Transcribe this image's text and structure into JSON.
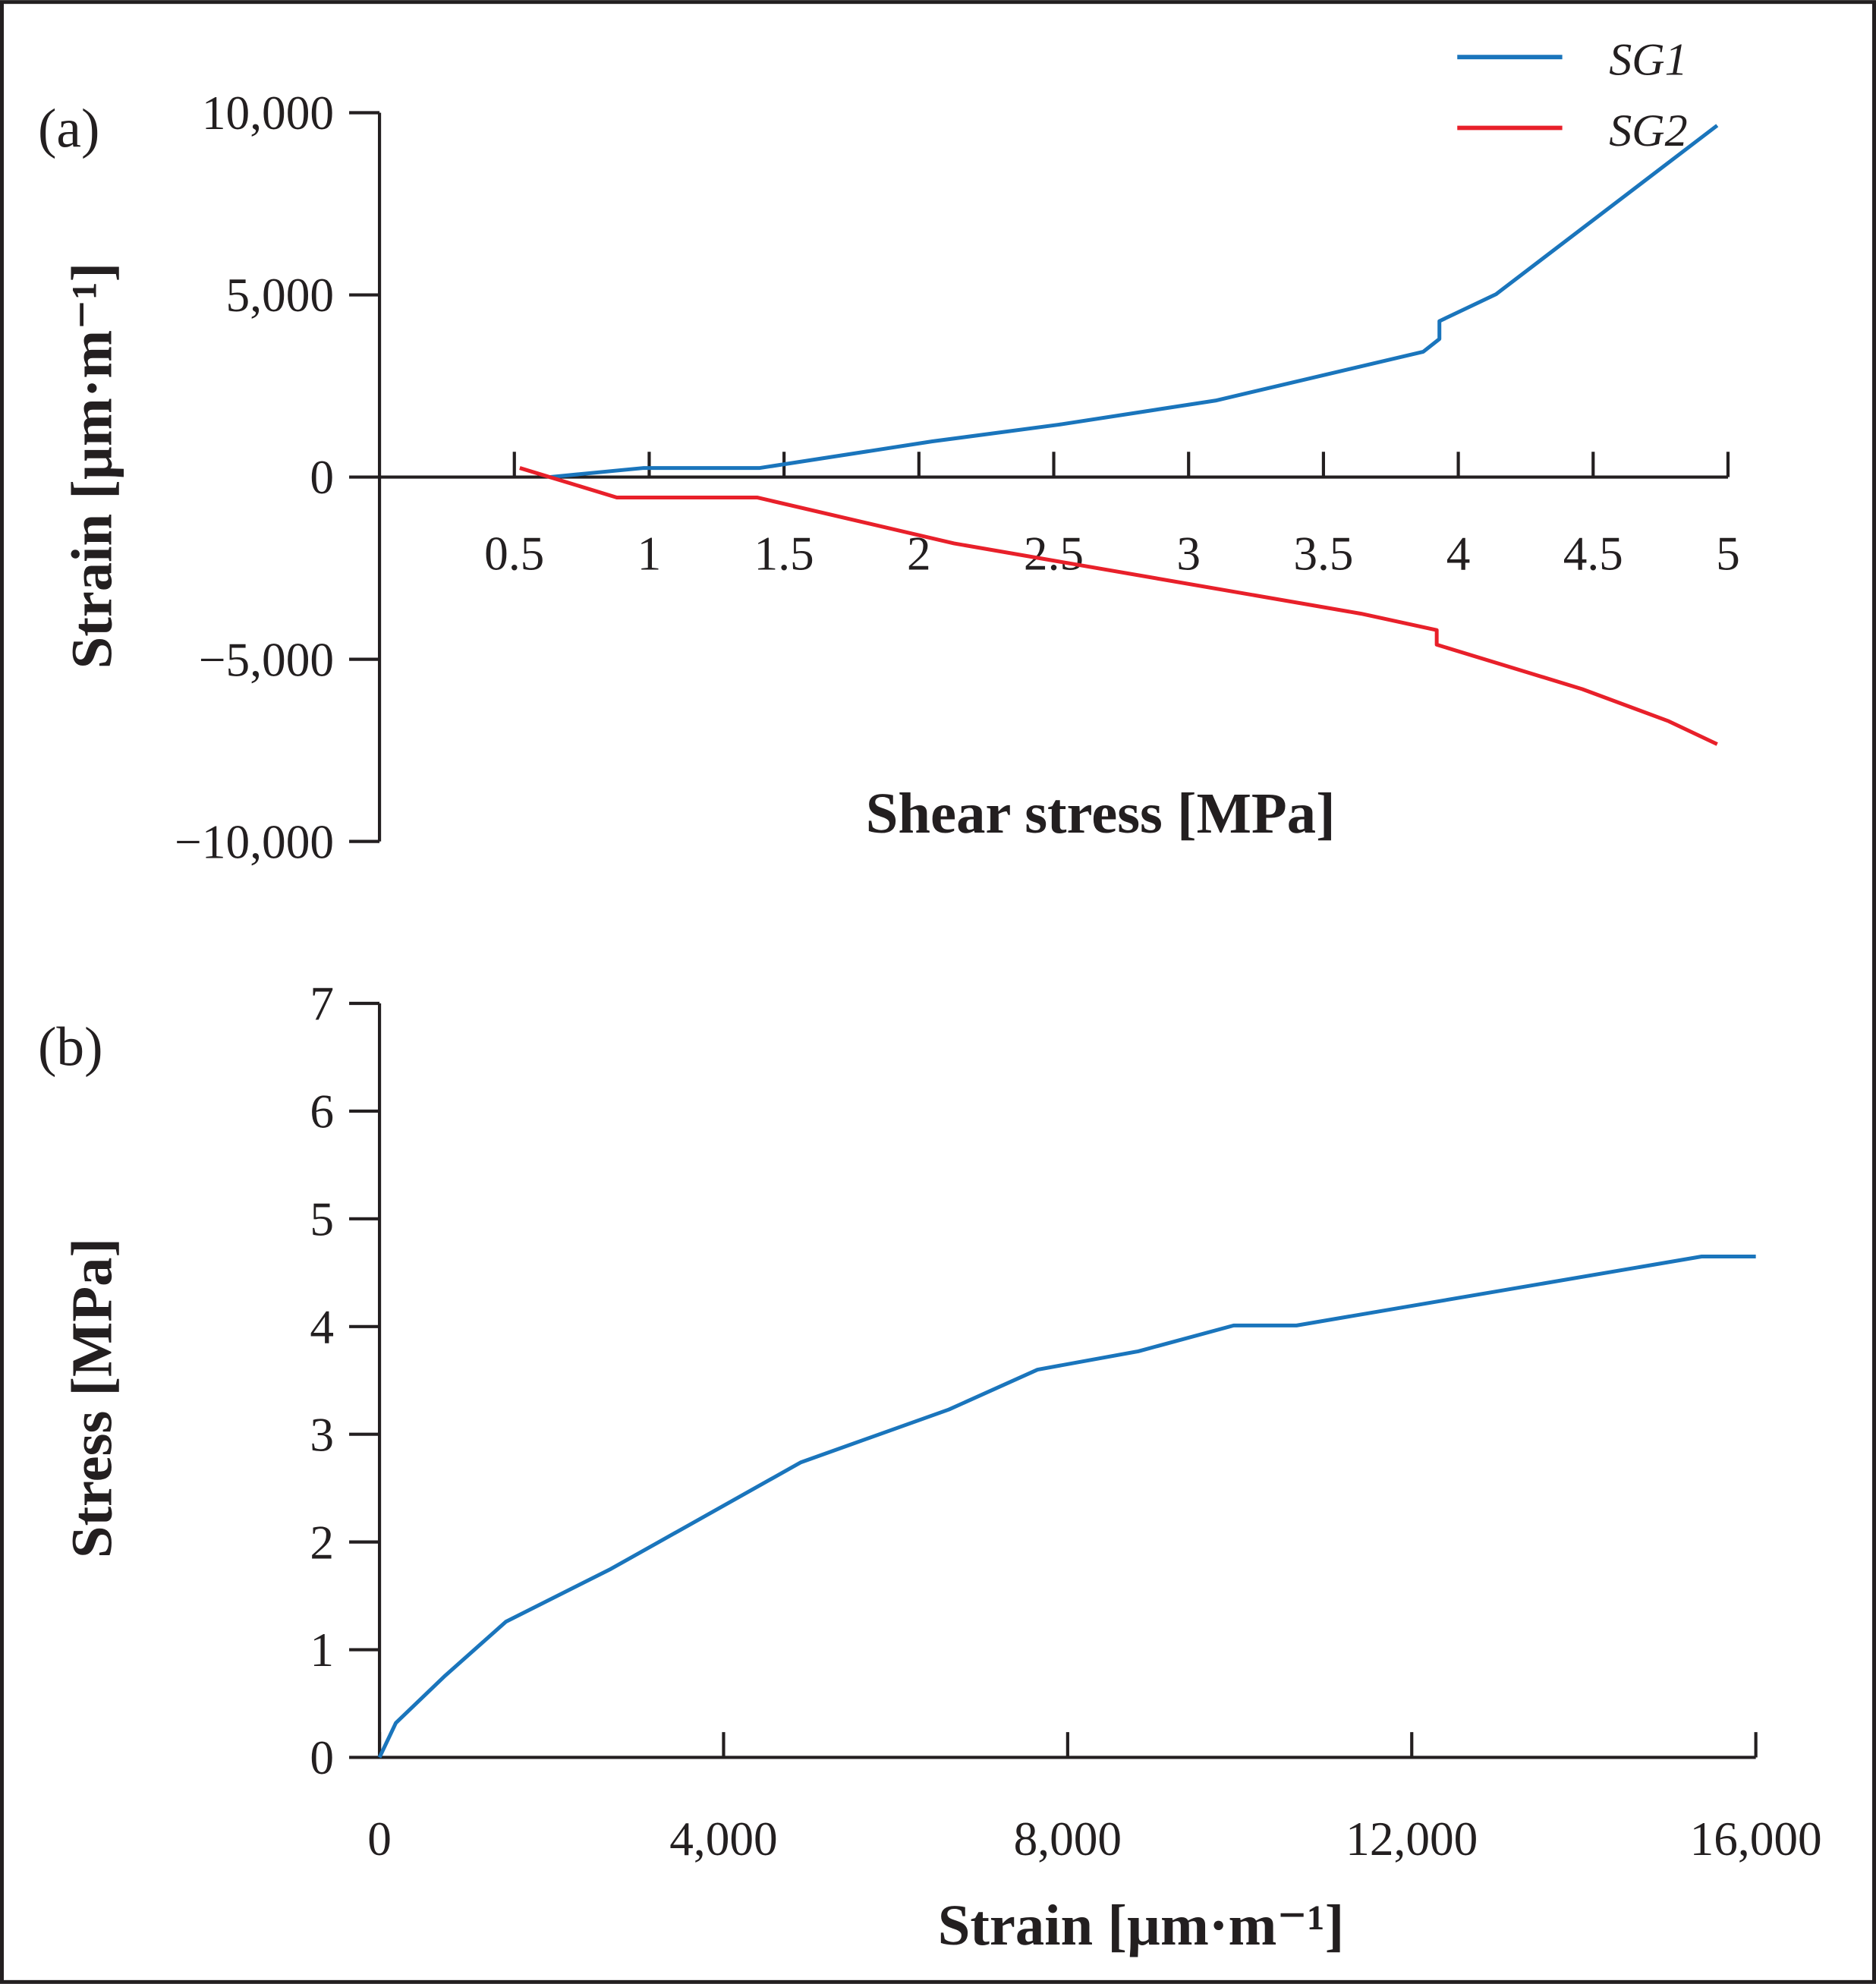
{
  "chart_data": [
    {
      "type": "line",
      "panel_label": "(a)",
      "xlabel": "Shear stress [MPa]",
      "ylabel": "Strain [µm·m⁻¹]",
      "xlim": [
        0,
        5
      ],
      "ylim": [
        -10000,
        10000
      ],
      "xticks": [
        0.5,
        1,
        1.5,
        2,
        2.5,
        3,
        3.5,
        4,
        4.5,
        5
      ],
      "xtick_labels": [
        "0.5",
        "1",
        "1.5",
        "2",
        "2.5",
        "3",
        "3.5",
        "4",
        "4.5",
        "5"
      ],
      "yticks": [
        10000,
        5000,
        0,
        -5000,
        -10000
      ],
      "ytick_labels": [
        "10,000",
        "5,000",
        "0",
        "−5,000",
        "−10,000"
      ],
      "legend_position": "top-right",
      "series": [
        {
          "name": "SG1",
          "color": "#1a75bc",
          "x": [
            0.63,
            0.98,
            1.41,
            2.05,
            2.52,
            3.1,
            3.87,
            3.93,
            3.93,
            4.14,
            4.96
          ],
          "y": [
            0,
            250,
            250,
            980,
            1440,
            2100,
            3440,
            3790,
            4280,
            5020,
            9650
          ]
        },
        {
          "name": "SG2",
          "color": "#e8202a",
          "x": [
            0.52,
            0.88,
            1.4,
            2.13,
            3.64,
            3.92,
            3.92,
            4.46,
            4.78,
            4.96
          ],
          "y": [
            250,
            -560,
            -560,
            -1820,
            -3750,
            -4200,
            -4600,
            -5820,
            -6700,
            -7330
          ]
        }
      ]
    },
    {
      "type": "line",
      "panel_label": "(b)",
      "xlabel": "Strain [µm·m⁻¹]",
      "ylabel": "Stress [MPa]",
      "xlim": [
        0,
        16000
      ],
      "ylim": [
        0,
        7
      ],
      "xticks": [
        0,
        4000,
        8000,
        12000,
        16000
      ],
      "xtick_labels": [
        "0",
        "4,000",
        "8,000",
        "12,000",
        "16,000"
      ],
      "yticks": [
        0,
        1,
        2,
        3,
        4,
        5,
        6,
        7
      ],
      "ytick_labels": [
        "0",
        "1",
        "2",
        "3",
        "4",
        "5",
        "6",
        "7"
      ],
      "series": [
        {
          "color": "#1a75bc",
          "x": [
            0,
            190,
            765,
            1470,
            2690,
            4900,
            6620,
            7650,
            8820,
            9930,
            10660,
            15370,
            16000
          ],
          "y": [
            0,
            0.32,
            0.76,
            1.26,
            1.75,
            2.74,
            3.23,
            3.6,
            3.77,
            4.01,
            4.01,
            4.65,
            4.65
          ]
        }
      ]
    }
  ]
}
